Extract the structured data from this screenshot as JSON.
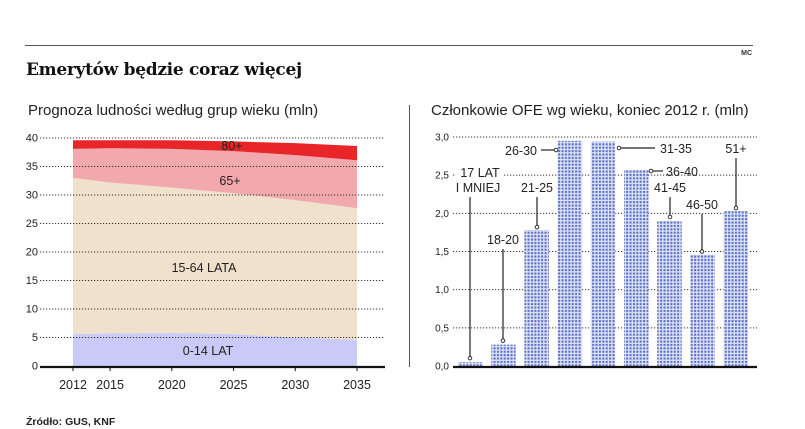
{
  "header": {
    "title": "Emerytów będzie coraz więcej",
    "credit": "MC"
  },
  "footer": {
    "source": "Źródło: GUS, KNF"
  },
  "colors": {
    "age_80_plus": "#e8262a",
    "age_65_plus": "#f1a9ad",
    "age_15_64": "#efe1cb",
    "age_0_14": "#c9cbf6",
    "bar_dot": "#5b6fc6",
    "bar_bg": "#dfe4f6"
  },
  "chart_data": [
    {
      "type": "area",
      "title": "Prognoza ludności według grup wieku (mln)",
      "xlabel": "",
      "ylabel": "mln",
      "x": [
        2012,
        2015,
        2020,
        2025,
        2030,
        2035
      ],
      "x_tick_labels": [
        "2012",
        "2015",
        "2020",
        "2025",
        "2030",
        "2035"
      ],
      "ylim": [
        0,
        40
      ],
      "y_ticks": [
        0,
        5,
        10,
        15,
        20,
        25,
        30,
        35,
        40
      ],
      "grid": true,
      "stacked": true,
      "series": [
        {
          "name": "0-14 LAT",
          "values": [
            5.6,
            5.7,
            5.8,
            5.6,
            5.0,
            4.6
          ]
        },
        {
          "name": "15-64 LATA",
          "values": [
            27.4,
            26.5,
            25.5,
            24.7,
            24.1,
            23.1
          ]
        },
        {
          "name": "65+",
          "values": [
            5.1,
            6.0,
            6.8,
            7.4,
            7.9,
            8.4
          ]
        },
        {
          "name": "80+",
          "values": [
            1.5,
            1.4,
            1.5,
            1.7,
            2.1,
            2.5
          ]
        }
      ],
      "totals": [
        39.6,
        39.6,
        39.6,
        39.4,
        39.1,
        38.6
      ],
      "labels": {
        "age_80_plus": "80+",
        "age_65_plus": "65+",
        "age_15_64": "15-64 LATA",
        "age_0_14": "0-14 LAT"
      }
    },
    {
      "type": "bar",
      "title": "Członkowie OFE wg wieku, koniec 2012 r. (mln)",
      "xlabel": "",
      "ylabel": "mln",
      "ylim": [
        0,
        3.0
      ],
      "y_ticks": [
        0.0,
        0.5,
        1.0,
        1.5,
        2.0,
        2.5,
        3.0
      ],
      "y_tick_labels": [
        "0,0",
        "0,5",
        "1,0",
        "1,5",
        "2,0",
        "2,5",
        "3,0"
      ],
      "grid": true,
      "categories": [
        "17 LAT I MNIEJ",
        "18-20",
        "21-25",
        "26-30",
        "31-35",
        "36-40",
        "41-45",
        "46-50",
        "51+"
      ],
      "category_label_lines": [
        [
          "17 LAT",
          "I MNIEJ"
        ],
        [
          "18-20"
        ],
        [
          "21-25"
        ],
        [
          "26-30"
        ],
        [
          "31-35"
        ],
        [
          "36-40"
        ],
        [
          "41-45"
        ],
        [
          "46-50"
        ],
        [
          "51+"
        ]
      ],
      "values": [
        0.05,
        0.28,
        1.78,
        2.95,
        2.94,
        2.57,
        1.9,
        1.46,
        2.03
      ]
    }
  ]
}
